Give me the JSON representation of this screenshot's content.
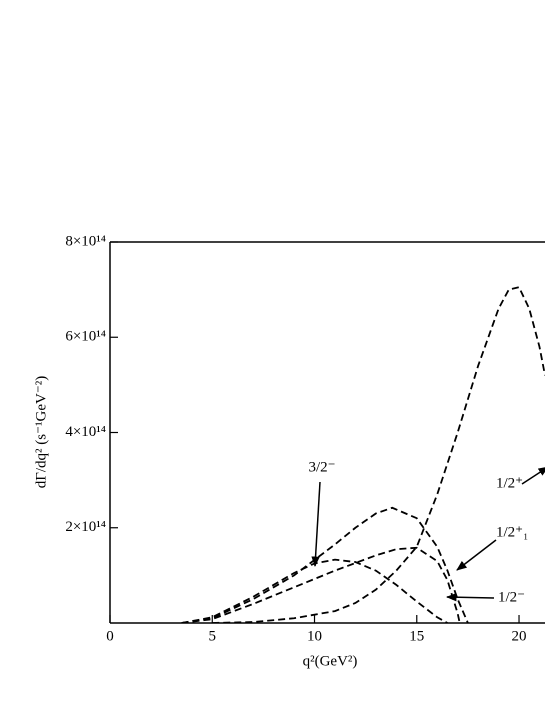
{
  "chart_data": {
    "type": "line",
    "xlabel": "q²(GeV²)",
    "ylabel": "dΓ/dq² (s⁻¹GeV⁻²)",
    "xlim": [
      0,
      21.27
    ],
    "ylim": [
      0,
      800000000000000
    ],
    "xticks": [
      0,
      5,
      10,
      15,
      20
    ],
    "yticks": [
      {
        "value": 200000000000000,
        "label": "2×10¹⁴"
      },
      {
        "value": 400000000000000,
        "label": "4×10¹⁴"
      },
      {
        "value": 600000000000000,
        "label": "6×10¹⁴"
      },
      {
        "value": 800000000000000,
        "label": "8×10¹⁴"
      }
    ],
    "line_style": "dashed",
    "series": [
      {
        "name": "3/2⁻",
        "color": "#000000",
        "x": [
          3.5,
          5,
          7,
          9,
          11,
          12,
          13,
          13.8,
          15,
          16,
          16.5,
          17,
          17.5
        ],
        "values": [
          0,
          10000000000000,
          50000000000000,
          100000000000000,
          165000000000000,
          200000000000000,
          230000000000000,
          242000000000000,
          220000000000000,
          160000000000000,
          110000000000000,
          50000000000000,
          0
        ]
      },
      {
        "name": "1/2⁺",
        "color": "#000000",
        "x": [
          5,
          7,
          9,
          11,
          12,
          13,
          14,
          15,
          16,
          17,
          18,
          19,
          19.5,
          20,
          20.5,
          21,
          21.27
        ],
        "values": [
          0,
          2000000000000,
          10000000000000,
          25000000000000,
          42000000000000,
          70000000000000,
          110000000000000,
          160000000000000,
          270000000000000,
          400000000000000,
          540000000000000,
          660000000000000,
          700000000000000,
          705000000000000,
          660000000000000,
          580000000000000,
          520000000000000
        ]
      },
      {
        "name": "1/2⁺₁",
        "color": "#000000",
        "x": [
          3.5,
          5,
          7,
          9,
          11,
          13,
          14,
          15,
          16,
          16.5,
          17,
          17.1
        ],
        "values": [
          0,
          8000000000000,
          40000000000000,
          75000000000000,
          110000000000000,
          142000000000000,
          155000000000000,
          158000000000000,
          130000000000000,
          90000000000000,
          20000000000000,
          0
        ]
      },
      {
        "name": "1/2⁻",
        "color": "#000000",
        "x": [
          3.5,
          5,
          7,
          9,
          10,
          11,
          12,
          13,
          14,
          15,
          16,
          16.5
        ],
        "values": [
          0,
          12000000000000,
          55000000000000,
          105000000000000,
          125000000000000,
          133000000000000,
          128000000000000,
          110000000000000,
          80000000000000,
          45000000000000,
          12000000000000,
          0
        ]
      }
    ]
  }
}
